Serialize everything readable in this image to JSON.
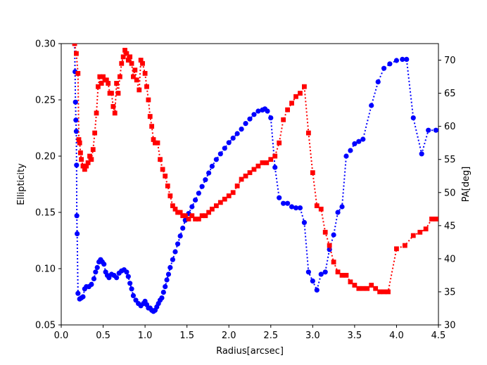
{
  "chart_data": {
    "type": "scatter",
    "xlabel": "Radius[arcsec]",
    "ylabel_left": "Ellipticity",
    "ylabel_right": "PA[deg]",
    "xlim": [
      0.0,
      4.5
    ],
    "ylim_left": [
      0.05,
      0.3
    ],
    "ylim_right": [
      30,
      72.5
    ],
    "x_ticks": [
      "0.0",
      "0.5",
      "1.0",
      "1.5",
      "2.0",
      "2.5",
      "3.0",
      "3.5",
      "4.0",
      "4.5"
    ],
    "y_left_ticks": [
      "0.05",
      "0.10",
      "0.15",
      "0.20",
      "0.25",
      "0.30"
    ],
    "y_right_ticks": [
      "30",
      "35",
      "40",
      "45",
      "50",
      "55",
      "60",
      "65",
      "70"
    ],
    "grid": false,
    "series": [
      {
        "axis": "left",
        "color": "#0000ff",
        "marker": "circle",
        "line": "dotted",
        "points": [
          [
            0.16,
            0.3
          ],
          [
            0.165,
            0.275
          ],
          [
            0.17,
            0.248
          ],
          [
            0.175,
            0.232
          ],
          [
            0.18,
            0.222
          ],
          [
            0.183,
            0.192
          ],
          [
            0.186,
            0.147
          ],
          [
            0.19,
            0.131
          ],
          [
            0.2,
            0.078
          ],
          [
            0.22,
            0.073
          ],
          [
            0.24,
            0.074
          ],
          [
            0.26,
            0.075
          ],
          [
            0.28,
            0.082
          ],
          [
            0.3,
            0.084
          ],
          [
            0.33,
            0.084
          ],
          [
            0.36,
            0.086
          ],
          [
            0.39,
            0.091
          ],
          [
            0.41,
            0.097
          ],
          [
            0.43,
            0.101
          ],
          [
            0.45,
            0.106
          ],
          [
            0.47,
            0.108
          ],
          [
            0.49,
            0.106
          ],
          [
            0.51,
            0.104
          ],
          [
            0.53,
            0.097
          ],
          [
            0.55,
            0.094
          ],
          [
            0.57,
            0.092
          ],
          [
            0.6,
            0.095
          ],
          [
            0.63,
            0.094
          ],
          [
            0.66,
            0.092
          ],
          [
            0.69,
            0.096
          ],
          [
            0.72,
            0.098
          ],
          [
            0.75,
            0.099
          ],
          [
            0.78,
            0.097
          ],
          [
            0.8,
            0.093
          ],
          [
            0.82,
            0.087
          ],
          [
            0.84,
            0.082
          ],
          [
            0.86,
            0.076
          ],
          [
            0.89,
            0.072
          ],
          [
            0.92,
            0.069
          ],
          [
            0.95,
            0.067
          ],
          [
            0.98,
            0.069
          ],
          [
            1.0,
            0.071
          ],
          [
            1.02,
            0.068
          ],
          [
            1.04,
            0.065
          ],
          [
            1.06,
            0.065
          ],
          [
            1.08,
            0.063
          ],
          [
            1.1,
            0.062
          ],
          [
            1.12,
            0.063
          ],
          [
            1.14,
            0.066
          ],
          [
            1.16,
            0.069
          ],
          [
            1.18,
            0.072
          ],
          [
            1.2,
            0.074
          ],
          [
            1.22,
            0.079
          ],
          [
            1.24,
            0.084
          ],
          [
            1.26,
            0.09
          ],
          [
            1.28,
            0.095
          ],
          [
            1.3,
            0.101
          ],
          [
            1.33,
            0.108
          ],
          [
            1.36,
            0.115
          ],
          [
            1.39,
            0.122
          ],
          [
            1.42,
            0.129
          ],
          [
            1.45,
            0.136
          ],
          [
            1.48,
            0.143
          ],
          [
            1.52,
            0.149
          ],
          [
            1.56,
            0.155
          ],
          [
            1.6,
            0.161
          ],
          [
            1.64,
            0.167
          ],
          [
            1.68,
            0.173
          ],
          [
            1.72,
            0.179
          ],
          [
            1.76,
            0.185
          ],
          [
            1.8,
            0.191
          ],
          [
            1.85,
            0.197
          ],
          [
            1.9,
            0.202
          ],
          [
            1.95,
            0.207
          ],
          [
            2.0,
            0.212
          ],
          [
            2.05,
            0.216
          ],
          [
            2.1,
            0.22
          ],
          [
            2.15,
            0.224
          ],
          [
            2.2,
            0.229
          ],
          [
            2.25,
            0.233
          ],
          [
            2.3,
            0.237
          ],
          [
            2.35,
            0.24
          ],
          [
            2.4,
            0.241
          ],
          [
            2.43,
            0.242
          ],
          [
            2.46,
            0.24
          ],
          [
            2.5,
            0.234
          ],
          [
            2.55,
            0.19
          ],
          [
            2.6,
            0.163
          ],
          [
            2.65,
            0.158
          ],
          [
            2.7,
            0.158
          ],
          [
            2.75,
            0.155
          ],
          [
            2.8,
            0.154
          ],
          [
            2.85,
            0.154
          ],
          [
            2.9,
            0.141
          ],
          [
            2.95,
            0.097
          ],
          [
            3.0,
            0.089
          ],
          [
            3.05,
            0.081
          ],
          [
            3.1,
            0.095
          ],
          [
            3.15,
            0.097
          ],
          [
            3.2,
            0.117
          ],
          [
            3.25,
            0.13
          ],
          [
            3.3,
            0.15
          ],
          [
            3.35,
            0.155
          ],
          [
            3.4,
            0.2
          ],
          [
            3.45,
            0.205
          ],
          [
            3.5,
            0.211
          ],
          [
            3.55,
            0.213
          ],
          [
            3.6,
            0.215
          ],
          [
            3.7,
            0.245
          ],
          [
            3.78,
            0.266
          ],
          [
            3.85,
            0.278
          ],
          [
            3.92,
            0.282
          ],
          [
            4.0,
            0.285
          ],
          [
            4.07,
            0.286
          ],
          [
            4.12,
            0.286
          ],
          [
            4.2,
            0.234
          ],
          [
            4.3,
            0.202
          ],
          [
            4.38,
            0.223
          ],
          [
            4.47,
            0.223
          ]
        ]
      },
      {
        "axis": "right",
        "color": "#ff0000",
        "marker": "square",
        "line": "dotted",
        "points": [
          [
            0.16,
            72.5
          ],
          [
            0.18,
            71.0
          ],
          [
            0.2,
            68.0
          ],
          [
            0.21,
            58.0
          ],
          [
            0.22,
            57.5
          ],
          [
            0.23,
            56.0
          ],
          [
            0.24,
            55.0
          ],
          [
            0.26,
            54.0
          ],
          [
            0.28,
            53.5
          ],
          [
            0.3,
            54.0
          ],
          [
            0.32,
            54.5
          ],
          [
            0.34,
            55.5
          ],
          [
            0.36,
            55.0
          ],
          [
            0.38,
            56.5
          ],
          [
            0.4,
            59.0
          ],
          [
            0.42,
            62.0
          ],
          [
            0.44,
            66.0
          ],
          [
            0.46,
            67.5
          ],
          [
            0.48,
            66.5
          ],
          [
            0.5,
            67.5
          ],
          [
            0.52,
            67.0
          ],
          [
            0.54,
            67.0
          ],
          [
            0.56,
            66.5
          ],
          [
            0.58,
            65.0
          ],
          [
            0.6,
            65.0
          ],
          [
            0.62,
            63.0
          ],
          [
            0.64,
            62.0
          ],
          [
            0.66,
            66.5
          ],
          [
            0.68,
            65.0
          ],
          [
            0.7,
            67.5
          ],
          [
            0.72,
            69.5
          ],
          [
            0.74,
            70.5
          ],
          [
            0.76,
            71.5
          ],
          [
            0.78,
            71.0
          ],
          [
            0.8,
            70.0
          ],
          [
            0.82,
            70.5
          ],
          [
            0.84,
            69.5
          ],
          [
            0.86,
            67.5
          ],
          [
            0.88,
            68.5
          ],
          [
            0.9,
            67.0
          ],
          [
            0.93,
            65.5
          ],
          [
            0.95,
            70.0
          ],
          [
            0.97,
            69.5
          ],
          [
            1.0,
            68.0
          ],
          [
            1.02,
            66.0
          ],
          [
            1.04,
            64.0
          ],
          [
            1.06,
            61.5
          ],
          [
            1.08,
            60.0
          ],
          [
            1.1,
            58.0
          ],
          [
            1.12,
            57.5
          ],
          [
            1.15,
            57.5
          ],
          [
            1.18,
            55.0
          ],
          [
            1.21,
            53.5
          ],
          [
            1.24,
            52.5
          ],
          [
            1.27,
            51.0
          ],
          [
            1.3,
            49.5
          ],
          [
            1.33,
            48.0
          ],
          [
            1.36,
            47.5
          ],
          [
            1.39,
            47.0
          ],
          [
            1.42,
            47.0
          ],
          [
            1.45,
            46.5
          ],
          [
            1.48,
            46.5
          ],
          [
            1.52,
            46.0
          ],
          [
            1.56,
            46.5
          ],
          [
            1.6,
            46.0
          ],
          [
            1.64,
            46.0
          ],
          [
            1.68,
            46.5
          ],
          [
            1.72,
            46.5
          ],
          [
            1.76,
            47.0
          ],
          [
            1.8,
            47.5
          ],
          [
            1.85,
            48.0
          ],
          [
            1.9,
            48.5
          ],
          [
            1.95,
            49.0
          ],
          [
            2.0,
            49.5
          ],
          [
            2.05,
            50.0
          ],
          [
            2.1,
            51.0
          ],
          [
            2.15,
            52.0
          ],
          [
            2.2,
            52.5
          ],
          [
            2.25,
            53.0
          ],
          [
            2.3,
            53.5
          ],
          [
            2.35,
            54.0
          ],
          [
            2.4,
            54.5
          ],
          [
            2.45,
            54.5
          ],
          [
            2.5,
            55.0
          ],
          [
            2.55,
            55.5
          ],
          [
            2.6,
            57.5
          ],
          [
            2.65,
            61.0
          ],
          [
            2.7,
            62.5
          ],
          [
            2.75,
            63.5
          ],
          [
            2.8,
            64.5
          ],
          [
            2.85,
            65.0
          ],
          [
            2.9,
            66.0
          ],
          [
            2.95,
            59.0
          ],
          [
            3.0,
            53.0
          ],
          [
            3.05,
            48.0
          ],
          [
            3.1,
            47.5
          ],
          [
            3.15,
            44.0
          ],
          [
            3.2,
            42.0
          ],
          [
            3.25,
            39.5
          ],
          [
            3.3,
            38.0
          ],
          [
            3.35,
            37.5
          ],
          [
            3.4,
            37.5
          ],
          [
            3.45,
            36.5
          ],
          [
            3.5,
            36.0
          ],
          [
            3.55,
            35.5
          ],
          [
            3.6,
            35.5
          ],
          [
            3.65,
            35.5
          ],
          [
            3.7,
            36.0
          ],
          [
            3.75,
            35.5
          ],
          [
            3.8,
            35.0
          ],
          [
            3.85,
            35.0
          ],
          [
            3.9,
            35.0
          ],
          [
            4.0,
            41.5
          ],
          [
            4.1,
            42.0
          ],
          [
            4.2,
            43.5
          ],
          [
            4.28,
            44.0
          ],
          [
            4.35,
            44.5
          ],
          [
            4.42,
            46.0
          ],
          [
            4.47,
            46.0
          ]
        ]
      }
    ]
  }
}
